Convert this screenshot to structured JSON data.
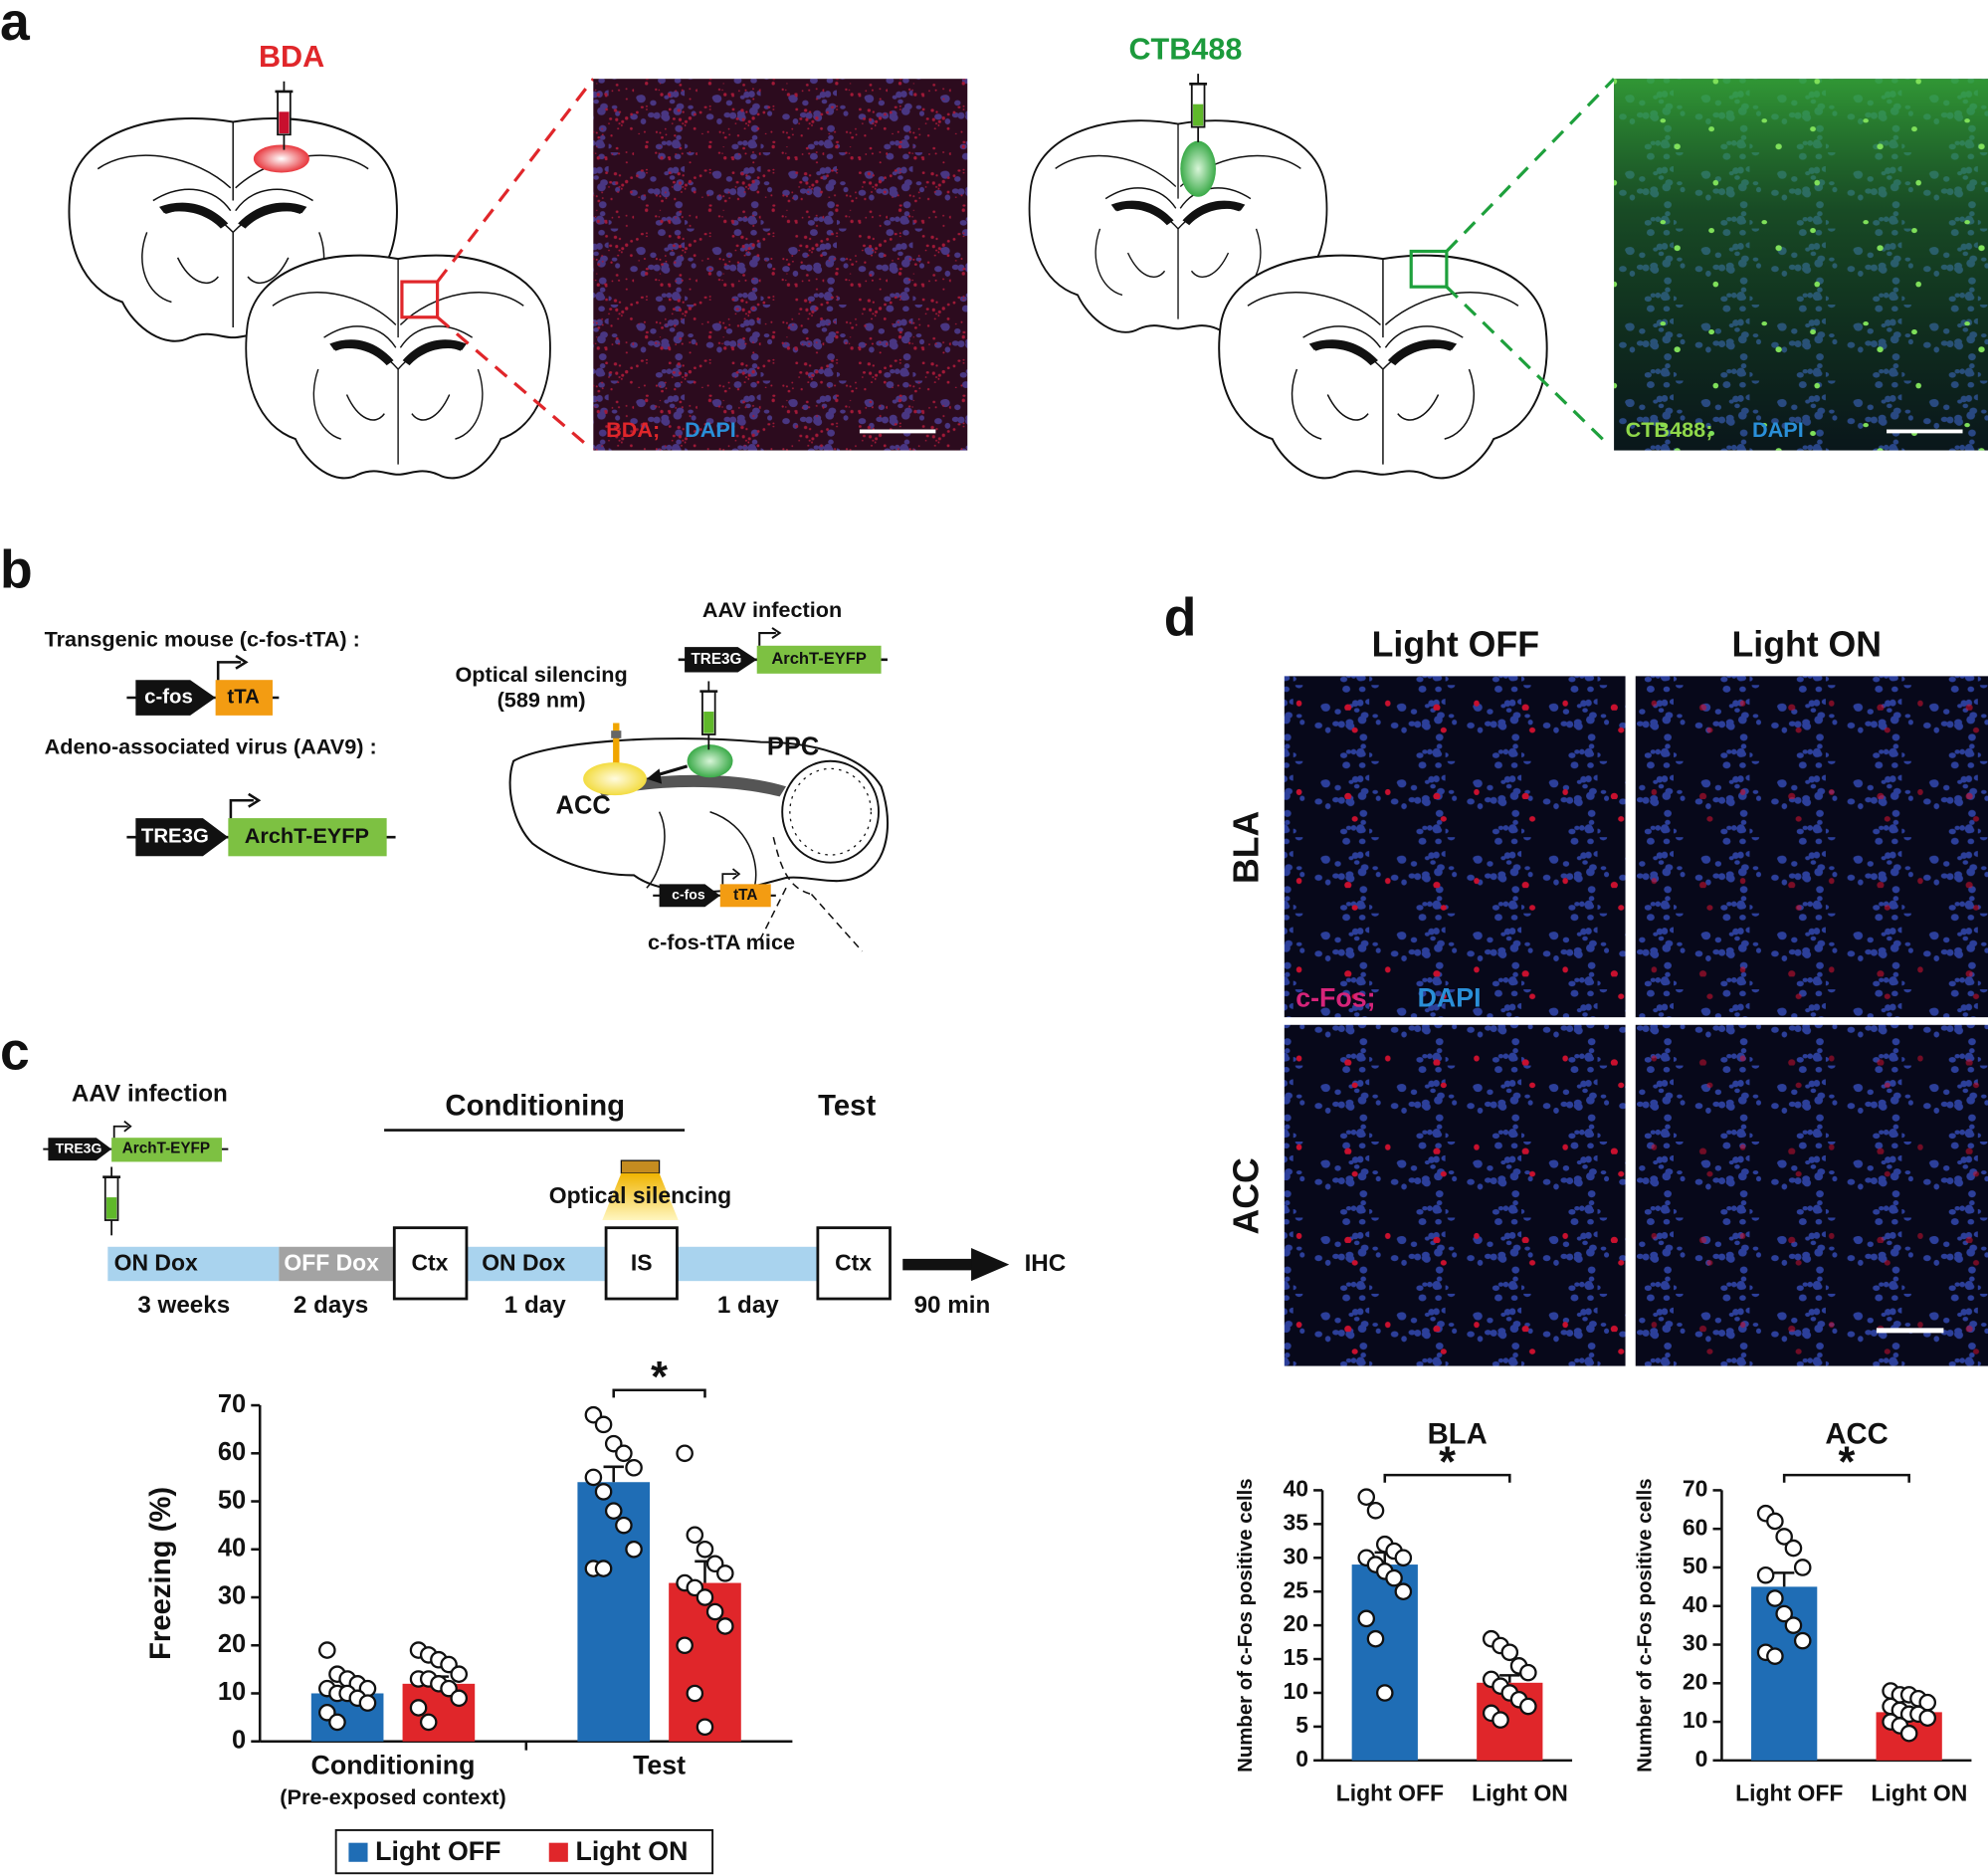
{
  "figure": {
    "panel_labels": [
      "a",
      "b",
      "c",
      "d"
    ],
    "a": {
      "left_tracer": "BDA",
      "left_stain": [
        "BDA;",
        "DAPI"
      ],
      "right_tracer": "CTB488",
      "right_stain": [
        "CTB488;",
        "DAPI"
      ]
    },
    "b": {
      "transgenic": "Transgenic mouse (c-fos-tTA) :",
      "aav": "Adeno-associated virus (AAV9) :",
      "genes": {
        "cfos": "c-fos",
        "tta": "tTA",
        "tre3g": "TRE3G",
        "archt": "ArchT-EYFP"
      },
      "aav_infection": "AAV infection",
      "optical": [
        "Optical silencing",
        "(589 nm)"
      ],
      "ppc": "PPC",
      "acc": "ACC",
      "mice": "c-fos-tTA mice"
    },
    "c": {
      "aav_infection": "AAV infection",
      "conditioning": "Conditioning",
      "test": "Test",
      "optical": "Optical silencing",
      "timeline": [
        "ON Dox",
        "OFF Dox",
        "Ctx",
        "ON Dox",
        "IS",
        "Ctx"
      ],
      "durations": [
        "3 weeks",
        "2 days",
        "1 day",
        "1 day",
        "90 min"
      ],
      "ihc": "IHC"
    },
    "d": {
      "columns": [
        "Light OFF",
        "Light ON"
      ],
      "rows": [
        "BLA",
        "ACC"
      ],
      "stain": [
        "c-Fos;",
        "DAPI"
      ]
    }
  },
  "chart_data": [
    {
      "type": "bar",
      "ylabel": "Freezing (%)",
      "categories": [
        "Conditioning",
        "Test"
      ],
      "category_sublabel": "(Pre-exposed context)",
      "series": [
        {
          "name": "Light OFF",
          "color": "#1f6db5",
          "values": [
            10,
            54
          ],
          "errors": [
            1.3,
            3.2
          ],
          "points": [
            [
              19,
              14,
              13,
              12,
              11,
              11,
              10,
              10,
              9,
              8,
              6,
              4
            ],
            [
              68,
              66,
              62,
              60,
              57,
              55,
              52,
              48,
              45,
              40,
              36,
              36
            ]
          ]
        },
        {
          "name": "Light ON",
          "color": "#e0262a",
          "values": [
            12,
            33
          ],
          "errors": [
            1.5,
            4.5
          ],
          "points": [
            [
              19,
              18,
              17,
              16,
              14,
              13,
              13,
              12,
              11,
              9,
              7,
              4
            ],
            [
              60,
              43,
              40,
              37,
              35,
              33,
              32,
              30,
              27,
              24,
              20,
              10,
              3
            ]
          ]
        }
      ],
      "ylim": [
        0,
        70
      ],
      "yticks": [
        0,
        10,
        20,
        30,
        40,
        50,
        60,
        70
      ],
      "annotation": "*",
      "legend": "bottom"
    },
    {
      "type": "bar",
      "title": "BLA",
      "ylabel": "Number of c-Fos positive cells",
      "categories": [
        "Light OFF",
        "Light ON"
      ],
      "values": [
        29,
        11.5
      ],
      "errors": [
        1.8,
        1.1
      ],
      "colors": [
        "#1f6db5",
        "#e0262a"
      ],
      "points": [
        [
          39,
          37,
          32,
          31,
          30,
          30,
          29,
          28,
          27,
          25,
          21,
          18,
          10
        ],
        [
          18,
          17,
          16,
          14,
          13,
          12,
          11,
          10,
          9,
          8,
          7,
          6
        ]
      ],
      "ylim": [
        0,
        40
      ],
      "yticks": [
        0,
        5,
        10,
        15,
        20,
        25,
        30,
        35,
        40
      ],
      "annotation": "*"
    },
    {
      "type": "bar",
      "title": "ACC",
      "ylabel": "Number of c-Fos positive cells",
      "categories": [
        "Light OFF",
        "Light ON"
      ],
      "values": [
        45,
        12.5
      ],
      "errors": [
        3.6,
        0.9
      ],
      "colors": [
        "#1f6db5",
        "#e0262a"
      ],
      "points": [
        [
          64,
          62,
          58,
          55,
          50,
          48,
          42,
          38,
          35,
          31,
          28,
          27
        ],
        [
          18,
          17,
          17,
          16,
          15,
          14,
          13,
          12,
          12,
          11,
          10,
          9,
          7
        ]
      ],
      "ylim": [
        0,
        70
      ],
      "yticks": [
        0,
        10,
        20,
        30,
        40,
        50,
        60,
        70
      ],
      "annotation": "*"
    }
  ]
}
